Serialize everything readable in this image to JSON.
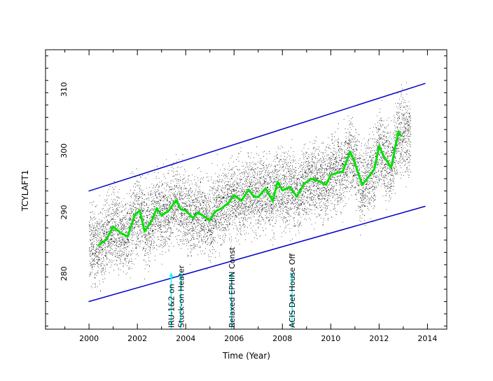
{
  "chart_data": {
    "type": "scatter",
    "title": "",
    "xlabel": "Time (Year)",
    "ylabel": "TCYLAFT1",
    "xlim": [
      1998.2,
      2014.8
    ],
    "ylim": [
      270.5,
      316
    ],
    "xticks": [
      "2000",
      "2002",
      "2004",
      "2006",
      "2008",
      "2010",
      "2012",
      "2014"
    ],
    "yticks": [
      "280",
      "290",
      "300",
      "310"
    ],
    "grid": false,
    "legend": "none",
    "series": [
      {
        "kind": "scatter-cloud",
        "color": "#000000",
        "x_range": [
          2000.0,
          2013.3
        ],
        "center_from_smooth": true,
        "approx_spread": 8
      },
      {
        "kind": "line",
        "color": "#00e000",
        "x": [
          2000.4,
          2000.7,
          2001.0,
          2001.3,
          2001.6,
          2001.9,
          2002.1,
          2002.3,
          2002.6,
          2002.8,
          2003.0,
          2003.3,
          2003.6,
          2003.8,
          2004.0,
          2004.3,
          2004.5,
          2004.7,
          2005.0,
          2005.2,
          2005.5,
          2005.8,
          2006.0,
          2006.3,
          2006.6,
          2006.8,
          2007.0,
          2007.3,
          2007.6,
          2007.8,
          2008.0,
          2008.3,
          2008.6,
          2008.9,
          2009.2,
          2009.5,
          2009.8,
          2010.0,
          2010.3,
          2010.5,
          2010.8,
          2011.0,
          2011.3,
          2011.5,
          2011.8,
          2012.0,
          2012.2,
          2012.5,
          2012.8,
          2012.9
        ],
        "y": [
          284.2,
          285.0,
          287.2,
          286.2,
          285.6,
          289.2,
          289.8,
          286.4,
          288.2,
          290.2,
          289.0,
          289.8,
          291.5,
          290.0,
          289.8,
          288.6,
          289.5,
          289.0,
          288.2,
          289.6,
          290.2,
          291.2,
          292.3,
          291.4,
          293.2,
          292.2,
          292.0,
          293.4,
          291.4,
          294.5,
          293.1,
          293.6,
          292.1,
          294.2,
          295.0,
          294.6,
          294.0,
          295.6,
          296.0,
          296.2,
          299.4,
          297.5,
          294.0,
          295.0,
          296.5,
          300.3,
          298.6,
          296.8,
          302.7,
          302.0
        ]
      },
      {
        "kind": "line",
        "color": "#0000cc",
        "name": "upper envelope",
        "x": [
          2000.0,
          2013.9
        ],
        "y": [
          293.0,
          310.5
        ]
      },
      {
        "kind": "line",
        "color": "#0000cc",
        "name": "lower envelope",
        "x": [
          2000.0,
          2013.9
        ],
        "y": [
          275.0,
          290.5
        ]
      }
    ],
    "annotations": [
      {
        "text": "IRU-1&2 on",
        "x": 2003.4,
        "color": "#00ffff"
      },
      {
        "text": "Stuck-on Heater",
        "x": 2003.8,
        "color": "#00ffff"
      },
      {
        "text": "Relaxed EPHIN Const",
        "x": 2005.9,
        "color": "#00ffff"
      },
      {
        "text": "ACIS Det House Off",
        "x": 2008.4,
        "color": "#00ffff"
      }
    ],
    "colors": {
      "points": "#000000",
      "smooth": "#00e000",
      "envelope": "#0000cc",
      "markers": "#00ffff",
      "axes": "#000000"
    }
  }
}
